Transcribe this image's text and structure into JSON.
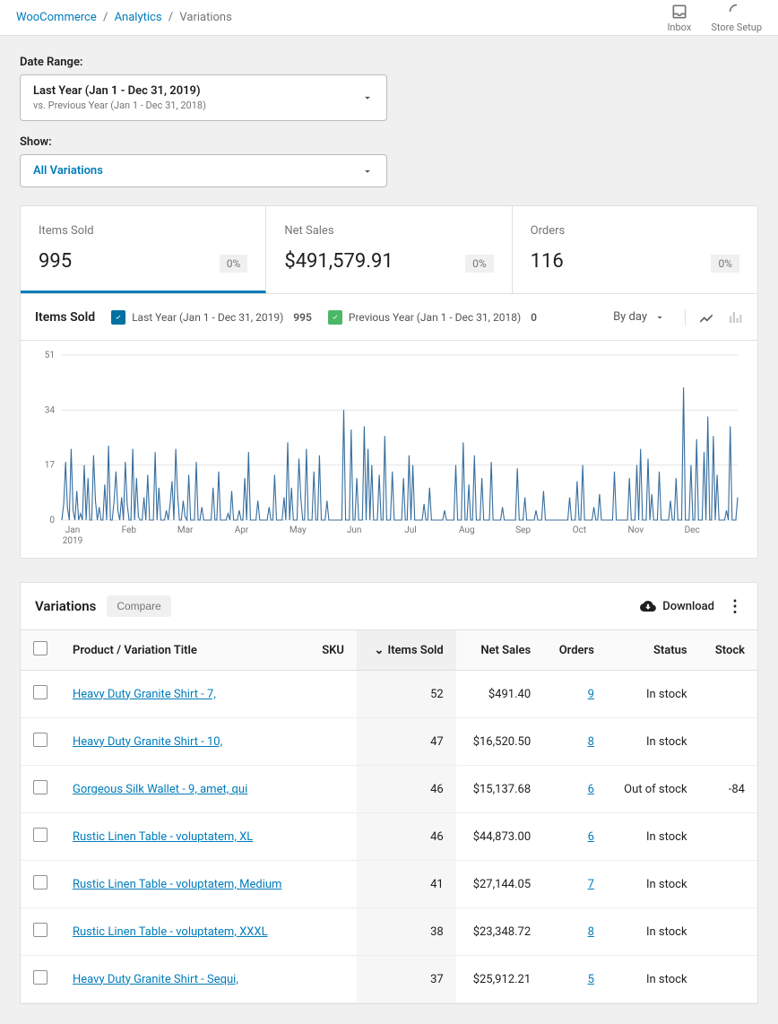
{
  "breadcrumb": {
    "root": "WooCommerce",
    "section": "Analytics",
    "page": "Variations"
  },
  "header_actions": {
    "inbox": "Inbox",
    "store_setup": "Store Setup"
  },
  "filters": {
    "date_range_label": "Date Range:",
    "date_range_primary": "Last Year (Jan 1 - Dec 31, 2019)",
    "date_range_secondary": "vs. Previous Year (Jan 1 - Dec 31, 2018)",
    "show_label": "Show:",
    "show_value": "All Variations"
  },
  "stats": {
    "items_sold": {
      "label": "Items Sold",
      "value": "995",
      "delta": "0%"
    },
    "net_sales": {
      "label": "Net Sales",
      "value": "$491,579.91",
      "delta": "0%"
    },
    "orders": {
      "label": "Orders",
      "value": "116",
      "delta": "0%"
    }
  },
  "chart": {
    "type": "line",
    "title": "Items Sold",
    "legend": {
      "current": {
        "label": "Last Year (Jan 1 - Dec 31, 2019)",
        "value": "995",
        "color": "#0071a1"
      },
      "previous": {
        "label": "Previous Year (Jan 1 - Dec 31, 2018)",
        "value": "0",
        "color": "#4ab866"
      }
    },
    "interval_label": "By day",
    "y_ticks": [
      0,
      17,
      34,
      51
    ],
    "ylim": [
      0,
      51
    ],
    "x_ticks": [
      "Jan",
      "Feb",
      "Mar",
      "Apr",
      "May",
      "Jun",
      "Jul",
      "Aug",
      "Sep",
      "Oct",
      "Nov",
      "Dec"
    ],
    "x_year_label": "2019",
    "line_color": "#356d9d",
    "line_width": 1.1,
    "grid_color": "#e5e5e5",
    "axis_text_color": "#757575",
    "background_color": "#ffffff",
    "series": [
      0,
      5,
      18,
      4,
      0,
      22,
      3,
      0,
      9,
      0,
      2,
      0,
      17,
      0,
      13,
      0,
      0,
      20,
      6,
      0,
      4,
      0,
      0,
      11,
      0,
      23,
      0,
      0,
      6,
      15,
      3,
      0,
      7,
      0,
      18,
      5,
      0,
      0,
      22,
      0,
      13,
      1,
      0,
      0,
      7,
      0,
      14,
      0,
      0,
      0,
      21,
      0,
      10,
      0,
      0,
      0,
      3,
      0,
      5,
      12,
      0,
      22,
      8,
      0,
      0,
      6,
      1,
      0,
      14,
      0,
      0,
      0,
      18,
      0,
      0,
      4,
      0,
      0,
      0,
      0,
      0,
      10,
      0,
      0,
      15,
      0,
      0,
      0,
      0,
      2,
      0,
      9,
      0,
      0,
      0,
      3,
      0,
      0,
      13,
      0,
      21,
      0,
      0,
      0,
      0,
      6,
      0,
      0,
      0,
      0,
      0,
      4,
      0,
      0,
      14,
      0,
      0,
      0,
      0,
      7,
      0,
      24,
      0,
      10,
      0,
      0,
      0,
      19,
      7,
      0,
      0,
      22,
      0,
      0,
      0,
      15,
      0,
      0,
      20,
      0,
      0,
      0,
      6,
      0,
      0,
      0,
      0,
      0,
      0,
      0,
      0,
      34,
      0,
      0,
      0,
      28,
      0,
      0,
      13,
      0,
      0,
      0,
      29,
      0,
      22,
      0,
      17,
      0,
      0,
      0,
      14,
      0,
      0,
      26,
      0,
      0,
      0,
      15,
      0,
      0,
      0,
      0,
      0,
      13,
      0,
      0,
      20,
      0,
      17,
      0,
      0,
      0,
      0,
      0,
      5,
      0,
      0,
      10,
      0,
      0,
      0,
      0,
      0,
      0,
      0,
      3,
      0,
      0,
      0,
      0,
      0,
      17,
      0,
      0,
      0,
      24,
      0,
      0,
      11,
      0,
      0,
      20,
      0,
      0,
      0,
      13,
      0,
      0,
      0,
      0,
      18,
      0,
      0,
      0,
      0,
      0,
      4,
      0,
      0,
      0,
      0,
      0,
      0,
      0,
      16,
      0,
      0,
      0,
      7,
      0,
      0,
      0,
      0,
      0,
      3,
      0,
      0,
      0,
      9,
      0,
      0,
      0,
      0,
      0,
      0,
      0,
      0,
      0,
      0,
      0,
      0,
      0,
      7,
      0,
      0,
      0,
      12,
      0,
      0,
      17,
      0,
      0,
      0,
      0,
      0,
      4,
      0,
      0,
      8,
      0,
      0,
      0,
      0,
      0,
      0,
      0,
      15,
      0,
      0,
      0,
      0,
      0,
      0,
      0,
      13,
      0,
      0,
      0,
      17,
      0,
      22,
      0,
      0,
      0,
      19,
      0,
      8,
      0,
      0,
      0,
      15,
      0,
      0,
      0,
      0,
      0,
      6,
      0,
      0,
      13,
      0,
      0,
      0,
      41,
      0,
      0,
      0,
      17,
      0,
      0,
      25,
      0,
      0,
      0,
      21,
      0,
      32,
      0,
      0,
      26,
      0,
      14,
      0,
      0,
      0,
      0,
      3,
      0,
      29,
      0,
      0,
      0,
      7
    ]
  },
  "table": {
    "title": "Variations",
    "compare_label": "Compare",
    "download_label": "Download",
    "columns": {
      "title": "Product / Variation Title",
      "sku": "SKU",
      "items_sold": "Items Sold",
      "net_sales": "Net Sales",
      "orders": "Orders",
      "status": "Status",
      "stock": "Stock"
    },
    "rows": [
      {
        "title": "Heavy Duty Granite Shirt - 7,",
        "sku": "",
        "items_sold": "52",
        "net_sales": "$491.40",
        "orders": "9",
        "status": "In stock",
        "stock": ""
      },
      {
        "title": "Heavy Duty Granite Shirt - 10,",
        "sku": "",
        "items_sold": "47",
        "net_sales": "$16,520.50",
        "orders": "8",
        "status": "In stock",
        "stock": ""
      },
      {
        "title": "Gorgeous Silk Wallet - 9, amet, qui",
        "sku": "",
        "items_sold": "46",
        "net_sales": "$15,137.68",
        "orders": "6",
        "status": "Out of stock",
        "stock": "-84"
      },
      {
        "title": "Rustic Linen Table - voluptatem, XL",
        "sku": "",
        "items_sold": "46",
        "net_sales": "$44,873.00",
        "orders": "6",
        "status": "In stock",
        "stock": ""
      },
      {
        "title": "Rustic Linen Table - voluptatem, Medium",
        "sku": "",
        "items_sold": "41",
        "net_sales": "$27,144.05",
        "orders": "7",
        "status": "In stock",
        "stock": ""
      },
      {
        "title": "Rustic Linen Table - voluptatem, XXXL",
        "sku": "",
        "items_sold": "38",
        "net_sales": "$23,348.72",
        "orders": "8",
        "status": "In stock",
        "stock": ""
      },
      {
        "title": "Heavy Duty Granite Shirt - Sequi,",
        "sku": "",
        "items_sold": "37",
        "net_sales": "$25,912.21",
        "orders": "5",
        "status": "In stock",
        "stock": ""
      }
    ]
  }
}
